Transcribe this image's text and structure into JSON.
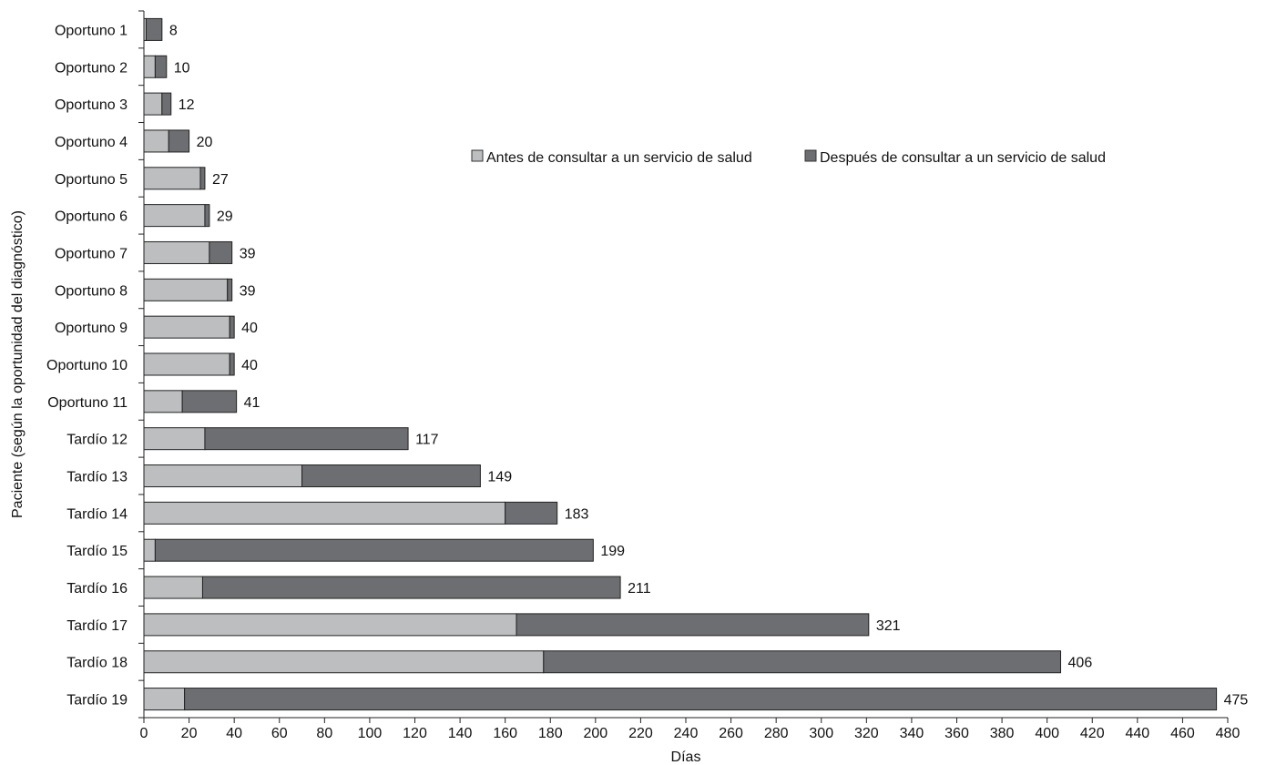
{
  "chart_data": {
    "type": "bar",
    "orientation": "horizontal",
    "stacked": true,
    "xlabel": "Días",
    "ylabel": "Paciente (según la oportunidad del diagnóstico)",
    "xlim": [
      0,
      480
    ],
    "xticks": [
      0,
      20,
      40,
      60,
      80,
      100,
      120,
      140,
      160,
      180,
      200,
      220,
      240,
      260,
      280,
      300,
      320,
      340,
      360,
      380,
      400,
      420,
      440,
      460,
      480
    ],
    "grid": false,
    "legend_position": "top-right",
    "categories": [
      "Oportuno 1",
      "Oportuno 2",
      "Oportuno 3",
      "Oportuno 4",
      "Oportuno 5",
      "Oportuno 6",
      "Oportuno 7",
      "Oportuno 8",
      "Oportuno 9",
      "Oportuno 10",
      "Oportuno 11",
      "Tardío 12",
      "Tardío 13",
      "Tardío 14",
      "Tardío 15",
      "Tardío 16",
      "Tardío 17",
      "Tardío 18",
      "Tardío 19"
    ],
    "series": [
      {
        "name": "Antes de consultar a un servicio de salud",
        "color": "#bdbec0",
        "values": [
          1,
          5,
          8,
          11,
          25,
          27,
          29,
          37,
          38,
          38,
          17,
          27,
          70,
          160,
          5,
          26,
          165,
          177,
          18
        ]
      },
      {
        "name": "Después de consultar a un servicio de salud",
        "color": "#6d6e71",
        "values": [
          7,
          5,
          4,
          9,
          2,
          2,
          10,
          2,
          2,
          2,
          24,
          90,
          79,
          23,
          194,
          185,
          156,
          229,
          457
        ]
      }
    ],
    "totals": [
      8,
      10,
      12,
      20,
      27,
      29,
      39,
      39,
      40,
      40,
      41,
      117,
      149,
      183,
      199,
      211,
      321,
      406,
      475
    ]
  }
}
